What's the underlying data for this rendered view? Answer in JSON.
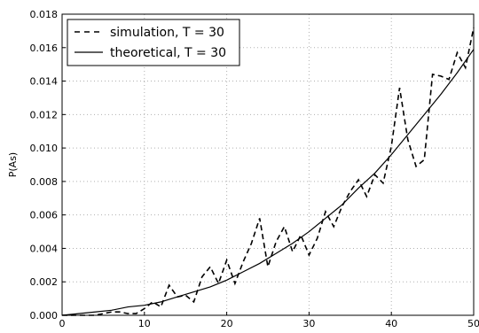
{
  "chart_data": {
    "type": "line",
    "title": "",
    "xlabel": "",
    "ylabel": "P(As)",
    "xlim": [
      0,
      50
    ],
    "ylim": [
      0,
      0.018
    ],
    "grid": true,
    "legend_position": "top-left",
    "x_ticks": [
      0,
      10,
      20,
      30,
      40,
      50
    ],
    "x_tick_labels": [
      "0",
      "10",
      "20",
      "30",
      "40",
      "50"
    ],
    "y_ticks": [
      0,
      0.002,
      0.004,
      0.006,
      0.008,
      0.01,
      0.012,
      0.014,
      0.016,
      0.018
    ],
    "y_tick_labels": [
      "0.000",
      "0.002",
      "0.004",
      "0.006",
      "0.008",
      "0.010",
      "0.012",
      "0.014",
      "0.016",
      "0.018"
    ],
    "series": [
      {
        "name": "simulation, T = 30",
        "style": "dashed",
        "color": "#000000",
        "x": [
          0,
          1,
          2,
          3,
          4,
          5,
          6,
          7,
          8,
          9,
          10,
          11,
          12,
          13,
          14,
          15,
          16,
          17,
          18,
          19,
          20,
          21,
          22,
          23,
          24,
          25,
          26,
          27,
          28,
          29,
          30,
          31,
          32,
          33,
          34,
          35,
          36,
          37,
          38,
          39,
          40,
          41,
          42,
          43,
          44,
          45,
          46,
          47,
          48,
          49,
          50
        ],
        "y": [
          0,
          0,
          0,
          0,
          0,
          0.0001,
          0.0002,
          0.0002,
          0.0001,
          0.0001,
          0.0004,
          0.0008,
          0.0005,
          0.0018,
          0.0011,
          0.0012,
          0.0008,
          0.0023,
          0.0029,
          0.0019,
          0.0033,
          0.0019,
          0.0032,
          0.0043,
          0.0058,
          0.0029,
          0.0044,
          0.0053,
          0.0038,
          0.0048,
          0.0036,
          0.0046,
          0.0062,
          0.0053,
          0.0065,
          0.0074,
          0.0081,
          0.0071,
          0.0084,
          0.0079,
          0.0101,
          0.0136,
          0.0105,
          0.0089,
          0.0093,
          0.0144,
          0.0143,
          0.0141,
          0.0157,
          0.0148,
          0.0172
        ]
      },
      {
        "name": "theoretical, T = 30",
        "style": "solid",
        "color": "#000000",
        "x": [
          0,
          2,
          4,
          6,
          8,
          10,
          12,
          14,
          16,
          18,
          20,
          22,
          24,
          26,
          28,
          30,
          32,
          34,
          36,
          38,
          40,
          42,
          44,
          46,
          48,
          50
        ],
        "y": [
          0,
          0.0001,
          0.0002,
          0.0003,
          0.0005,
          0.0006,
          0.0008,
          0.0011,
          0.0014,
          0.0017,
          0.0021,
          0.0026,
          0.0031,
          0.0037,
          0.0043,
          0.005,
          0.0058,
          0.0066,
          0.0076,
          0.0085,
          0.0096,
          0.0108,
          0.012,
          0.0132,
          0.0145,
          0.0159
        ]
      }
    ]
  },
  "colors": {
    "grid": "#b0b0b0",
    "axes": "#000000",
    "background": "#ffffff"
  }
}
